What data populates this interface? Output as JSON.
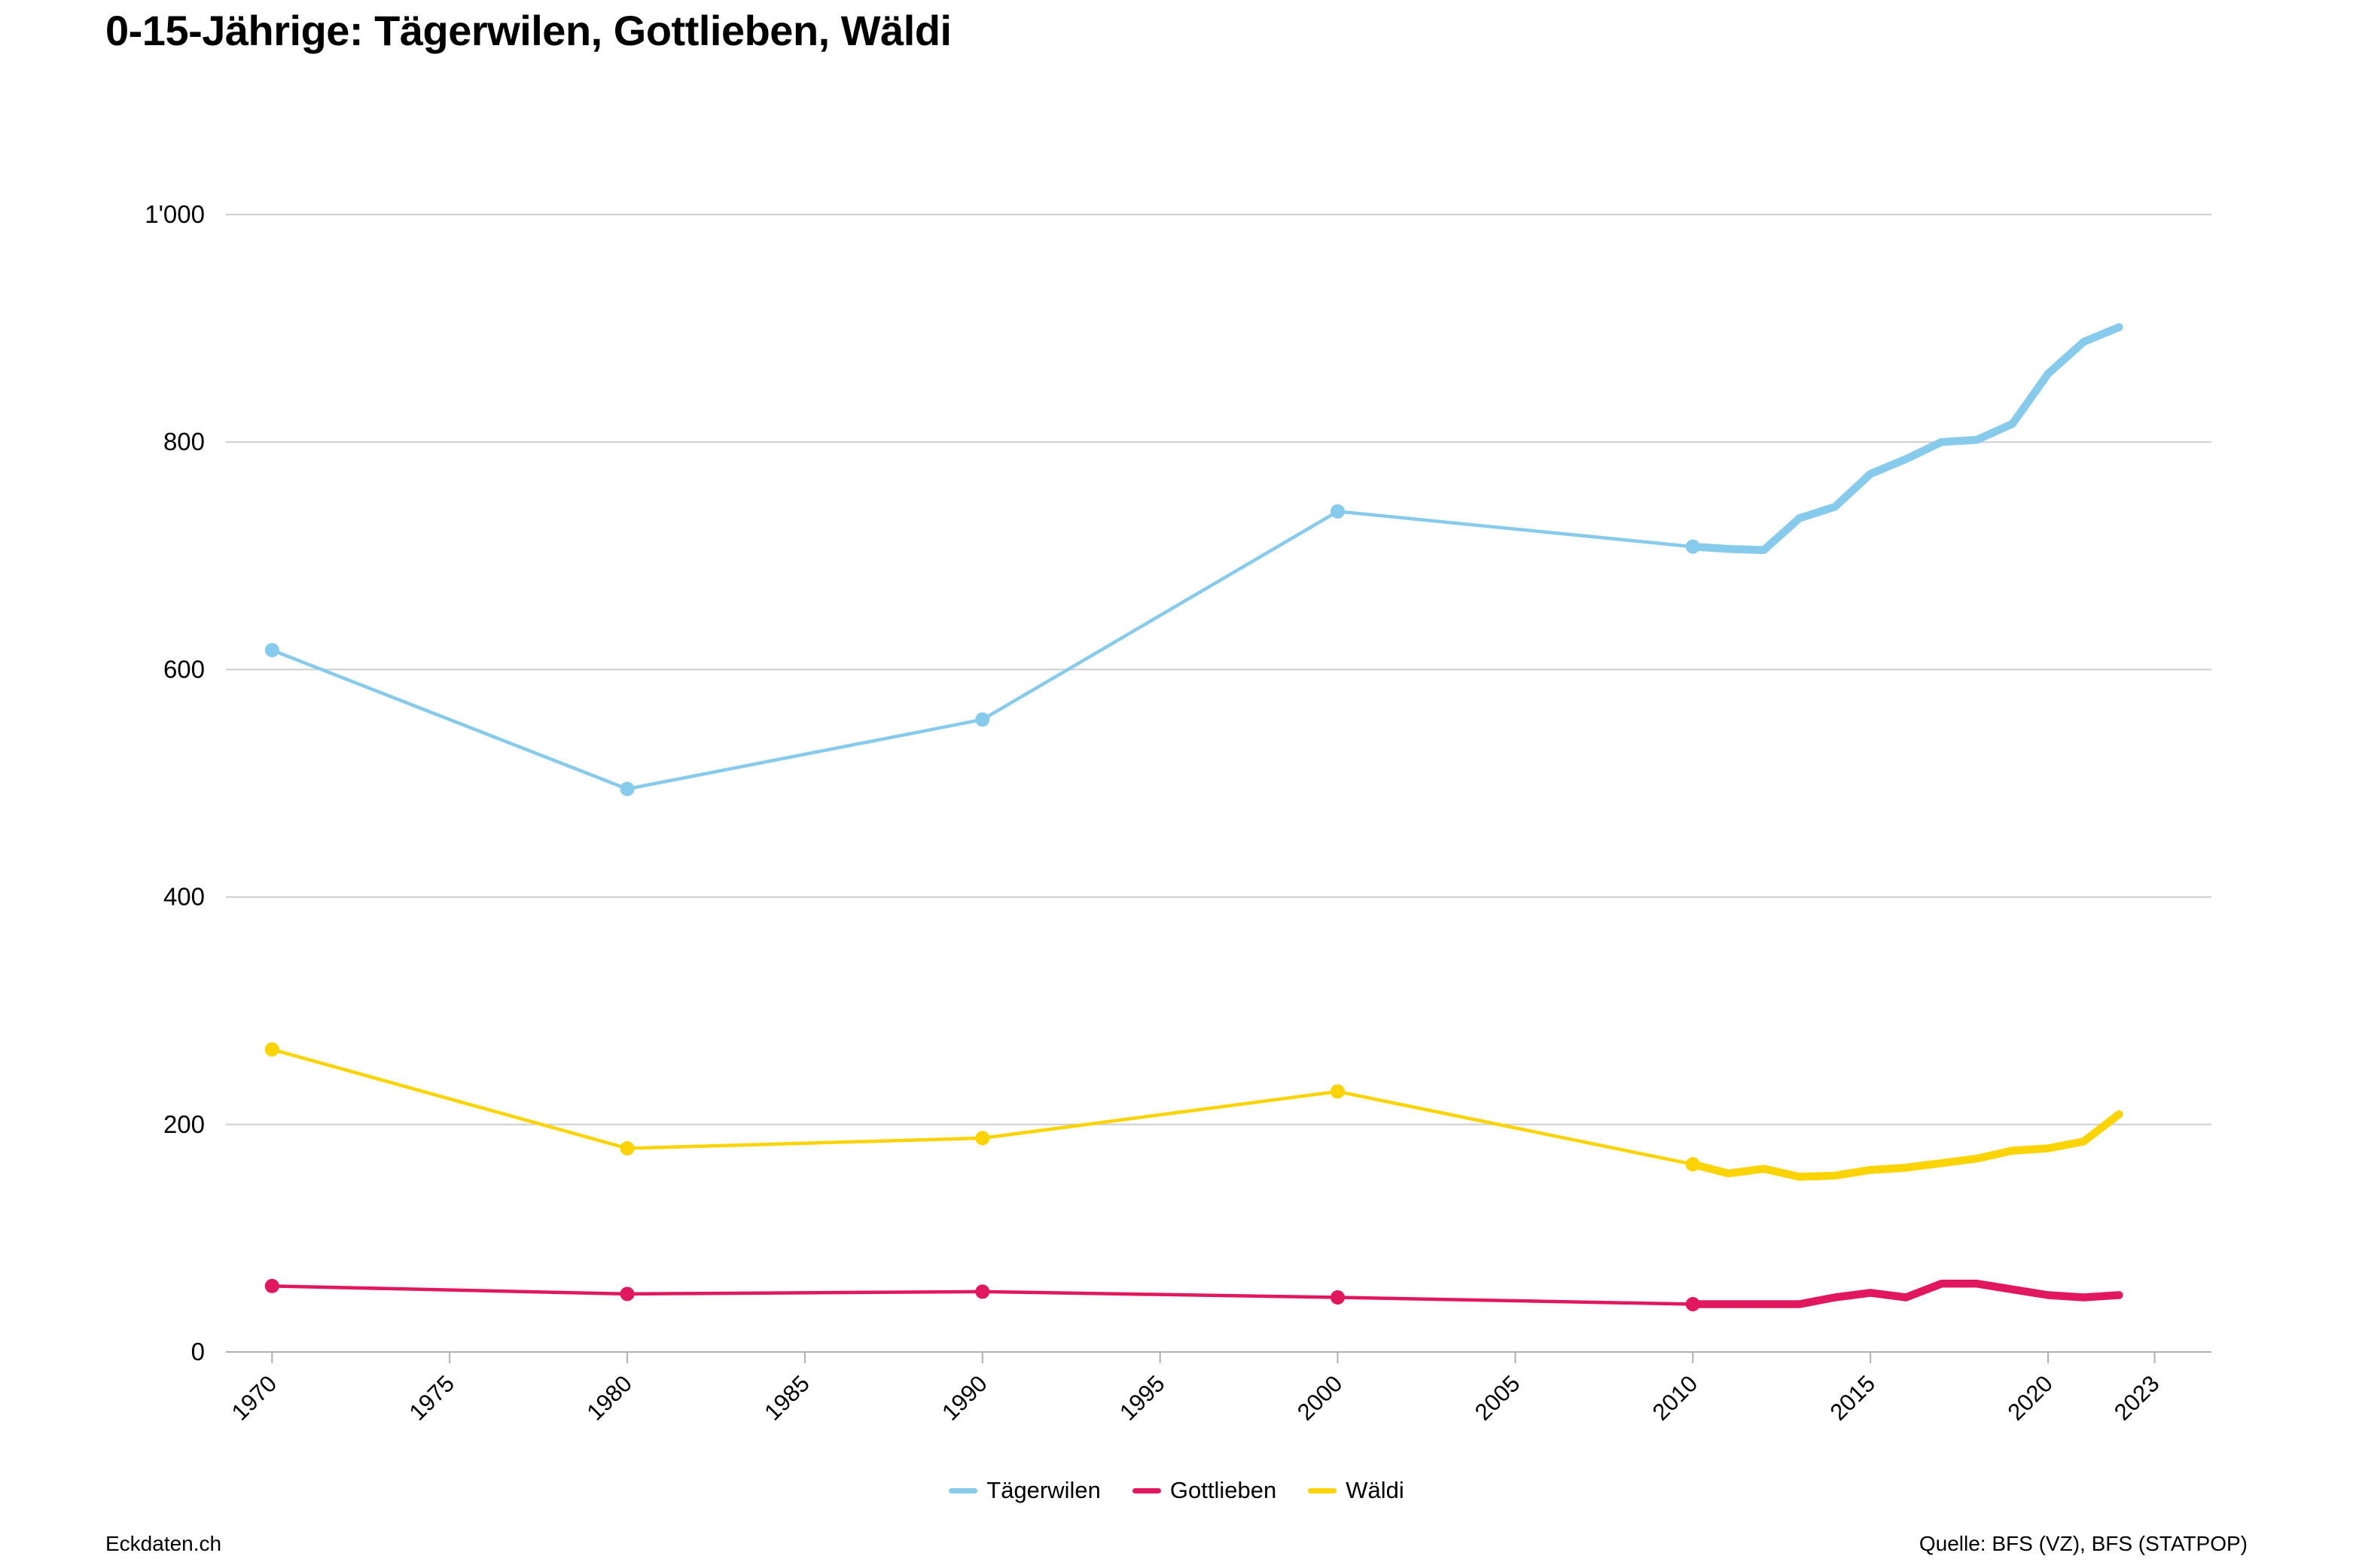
{
  "title": "0-15-Jährige: Tägerwilen, Gottlieben, Wäldi",
  "footer": {
    "brand": "Eckdaten.ch",
    "source": "Quelle: BFS (VZ), BFS (STATPOP)"
  },
  "chart_data": {
    "type": "line",
    "title": "0-15-Jährige: Tägerwilen, Gottlieben, Wäldi",
    "x": [
      1970,
      1980,
      1990,
      2000,
      2010,
      2011,
      2012,
      2013,
      2014,
      2015,
      2016,
      2017,
      2018,
      2019,
      2020,
      2021,
      2022
    ],
    "census_years": [
      1970,
      1980,
      1990,
      2000,
      2010
    ],
    "series": [
      {
        "name": "Tägerwilen",
        "color": "#87CBEC",
        "values": [
          617,
          495,
          556,
          739,
          708,
          706,
          705,
          733,
          743,
          772,
          785,
          800,
          802,
          816,
          860,
          888,
          901
        ]
      },
      {
        "name": "Gottlieben",
        "color": "#E2185E",
        "values": [
          58,
          51,
          53,
          48,
          42,
          42,
          42,
          42,
          48,
          52,
          48,
          60,
          60,
          55,
          50,
          48,
          50
        ]
      },
      {
        "name": "Wäldi",
        "color": "#FCD303",
        "values": [
          266,
          179,
          188,
          229,
          165,
          157,
          161,
          154,
          155,
          160,
          162,
          166,
          170,
          177,
          179,
          185,
          209
        ]
      }
    ],
    "x_ticks": [
      1970,
      1975,
      1980,
      1985,
      1990,
      1995,
      2000,
      2005,
      2010,
      2015,
      2020,
      2023
    ],
    "y_ticks": [
      0,
      200,
      400,
      600,
      800,
      1000
    ],
    "y_tick_labels": [
      "0",
      "200",
      "400",
      "600",
      "800",
      "1'000"
    ],
    "xlim": [
      1968.7,
      2024.6
    ],
    "ylim": [
      0,
      1000
    ],
    "grid": true,
    "legend_position": "bottom",
    "colors": {
      "gridline": "#CDCDCD",
      "axis": "#B0B0B0",
      "tick_text": "#000000"
    }
  }
}
